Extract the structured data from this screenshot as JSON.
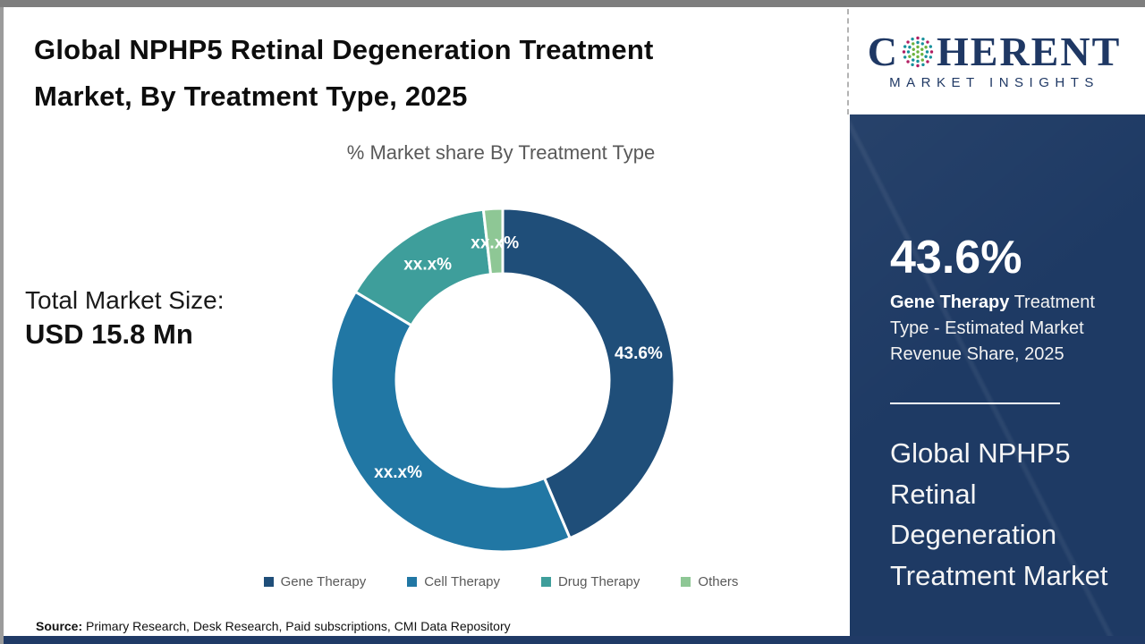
{
  "header": {
    "title_line1": "Global NPHP5 Retinal Degeneration Treatment",
    "title_line2": "Market, By Treatment Type, 2025",
    "subtitle": "% Market share By Treatment Type"
  },
  "total_market": {
    "label": "Total Market Size:",
    "value": "USD 15.8 Mn"
  },
  "chart_data": {
    "type": "pie",
    "subtype": "donut",
    "title": "% Market share By Treatment Type",
    "unit": "%",
    "start_angle_deg": 0,
    "direction": "clockwise",
    "legend_position": "bottom",
    "series": [
      {
        "name": "Gene Therapy",
        "value": 43.6,
        "display_label": "43.6%",
        "color": "#1F4E79"
      },
      {
        "name": "Cell Therapy",
        "value": 40.0,
        "display_label": "xx.x%",
        "color": "#2177A4"
      },
      {
        "name": "Drug Therapy",
        "value": 14.6,
        "display_label": "xx.x%",
        "color": "#3E9E9B"
      },
      {
        "name": "Others",
        "value": 1.8,
        "display_label": "xx.x%",
        "color": "#8EC795"
      }
    ]
  },
  "sidebar": {
    "logo": {
      "text_c": "C",
      "text_rest": "HERENT",
      "tagline": "MARKET INSIGHTS",
      "brand_color": "#1F3864"
    },
    "stat_value": "43.6%",
    "stat_desc_bold": "Gene Therapy",
    "stat_desc_rest": " Treatment Type - Estimated Market Revenue Share, 2025",
    "panel_title": "Global NPHP5 Retinal Degeneration Treatment Market"
  },
  "source": {
    "label": "Source:",
    "text": " Primary Research, Desk Research, Paid subscriptions, CMI Data Repository"
  }
}
